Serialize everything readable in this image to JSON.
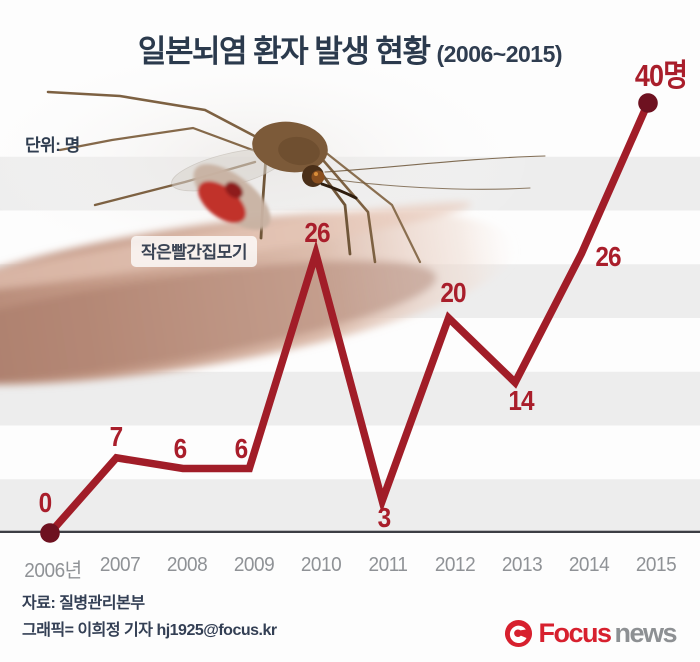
{
  "title": {
    "main": "일본뇌염 환자 발생 현황",
    "period": "(2006~2015)"
  },
  "unit_label": "단위: 명",
  "photo": {
    "caption": "작은빨간집모기",
    "subject": "mosquito-biting-skin"
  },
  "chart_data": {
    "type": "line",
    "title": "일본뇌염 환자 발생 현황 (2006~2015)",
    "ylabel": "명",
    "categories": [
      "2006년",
      "2007",
      "2008",
      "2009",
      "2010",
      "2011",
      "2012",
      "2013",
      "2014",
      "2015"
    ],
    "values": [
      0,
      7,
      6,
      6,
      26,
      3,
      20,
      14,
      26,
      40
    ],
    "value_labels": [
      "0",
      "7",
      "6",
      "6",
      "26",
      "3",
      "20",
      "14",
      "26",
      "40명"
    ],
    "ylim": [
      0,
      40
    ],
    "grid": "alternating horizontal 5-unit bands",
    "legend": "none",
    "line_color": "#a11d28",
    "endpoint_color": "#6e1120",
    "value_label_color": "#a91e2b",
    "stripe_color": "#ededed",
    "baseline_color": "#3c3e44",
    "axis_label_color": "#8f9296"
  },
  "footer": {
    "source": "자료: 질병관리본부",
    "credit": "그래픽= 이희정 기자 hj1925@focus.kr"
  },
  "logo": {
    "word1": "Focus",
    "word2": "news",
    "word1_color": "#d7202e",
    "word2_color": "#8d9093",
    "icon_color": "#d7202e"
  }
}
